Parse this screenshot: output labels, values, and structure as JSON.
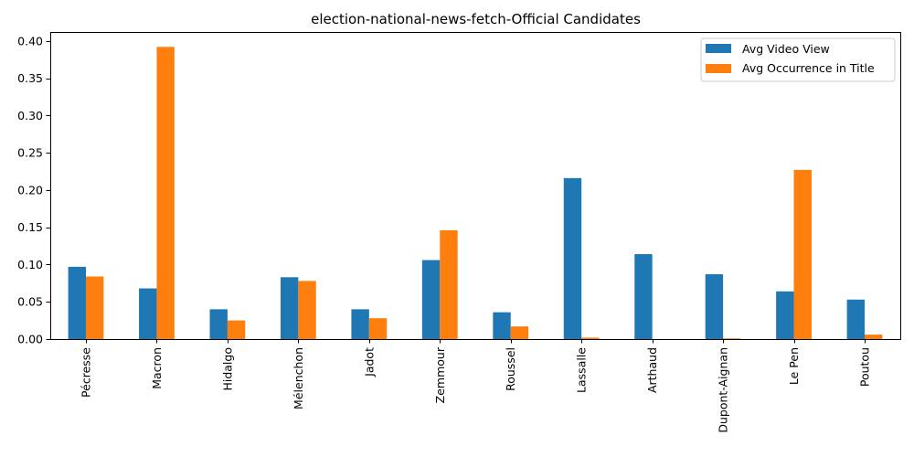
{
  "chart_data": {
    "type": "bar",
    "title": "election-national-news-fetch-Official Candidates",
    "xlabel": "",
    "ylabel": "",
    "ylim": [
      0,
      0.412
    ],
    "yticks": [
      "0.00",
      "0.05",
      "0.10",
      "0.15",
      "0.20",
      "0.25",
      "0.30",
      "0.35",
      "0.40"
    ],
    "categories": [
      "Pécresse",
      "Macron",
      "Hidalgo",
      "Mélenchon",
      "Jadot",
      "Zemmour",
      "Roussel",
      "Lassalle",
      "Arthaud",
      "Dupont-Aignan",
      "Le Pen",
      "Poutou"
    ],
    "series": [
      {
        "name": "Avg Video View",
        "color": "#1f77b4",
        "values": [
          0.097,
          0.068,
          0.04,
          0.083,
          0.04,
          0.106,
          0.036,
          0.216,
          0.114,
          0.087,
          0.064,
          0.053
        ]
      },
      {
        "name": "Avg Occurrence in Title",
        "color": "#ff7f0e",
        "values": [
          0.084,
          0.392,
          0.025,
          0.078,
          0.028,
          0.146,
          0.017,
          0.002,
          0.0,
          0.001,
          0.227,
          0.006
        ]
      }
    ],
    "legend_position": "top-right",
    "grid": false
  }
}
